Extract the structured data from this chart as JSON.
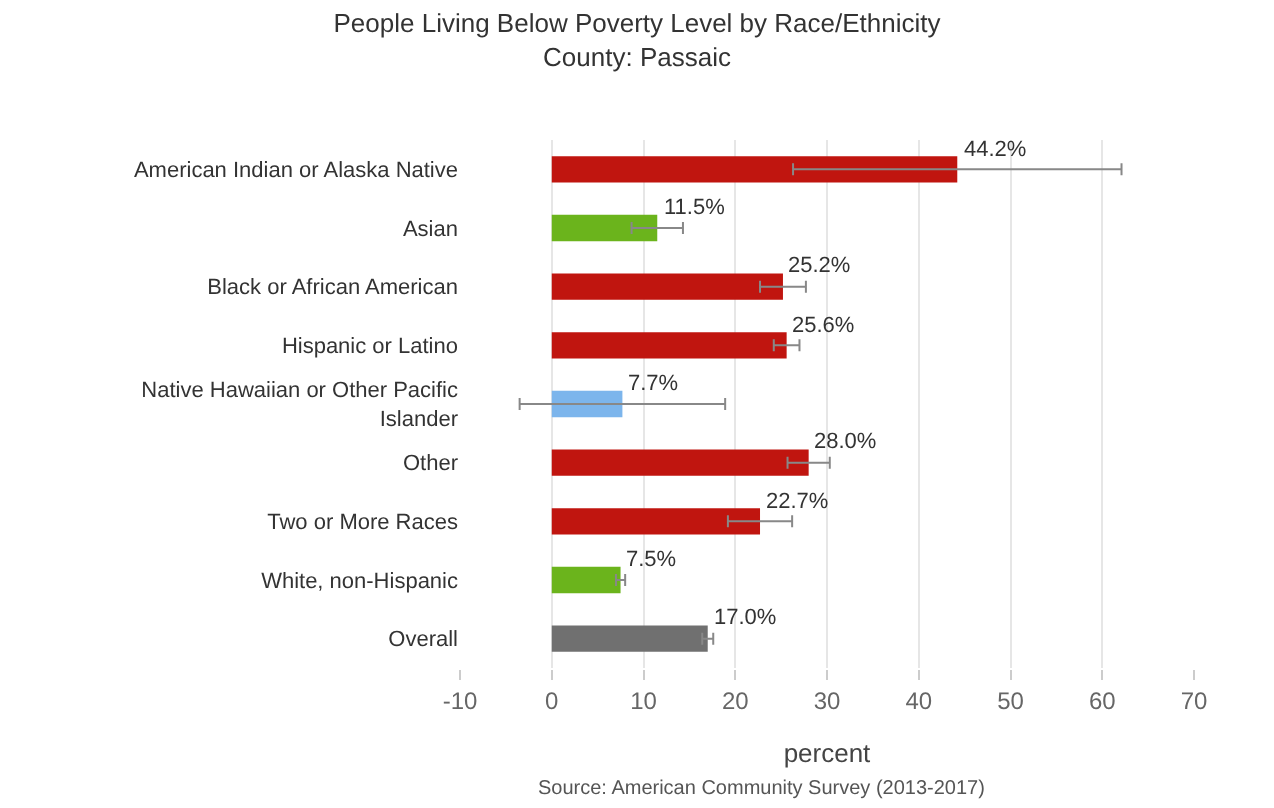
{
  "chart_data": {
    "type": "bar",
    "orientation": "horizontal",
    "title": "People Living Below Poverty Level by Race/Ethnicity",
    "subtitle": "County: Passaic",
    "xlabel": "percent",
    "categories": [
      "American Indian or Alaska Native",
      "Asian",
      "Black or African American",
      "Hispanic or Latino",
      "Native Hawaiian or Other Pacific Islander",
      "Other",
      "Two or More Races",
      "White, non-Hispanic",
      "Overall"
    ],
    "values": [
      44.2,
      11.5,
      25.2,
      25.6,
      7.7,
      28.0,
      22.7,
      7.5,
      17.0
    ],
    "value_labels": [
      "44.2%",
      "11.5%",
      "25.2%",
      "25.6%",
      "7.7%",
      "28.0%",
      "22.7%",
      "7.5%",
      "17.0%"
    ],
    "errors": [
      17.9,
      2.8,
      2.5,
      1.4,
      11.2,
      2.3,
      3.5,
      0.5,
      0.6
    ],
    "colors": [
      "#c0150f",
      "#6bb41c",
      "#c0150f",
      "#c0150f",
      "#7cb5ec",
      "#c0150f",
      "#c0150f",
      "#6bb41c",
      "#707070"
    ],
    "xlim": [
      -10,
      70
    ],
    "xticks": [
      -10,
      0,
      10,
      20,
      30,
      40,
      50,
      60,
      70
    ],
    "grid": "x",
    "legend": false,
    "annotations": [
      "Source: American Community Survey (2013-2017)"
    ]
  }
}
